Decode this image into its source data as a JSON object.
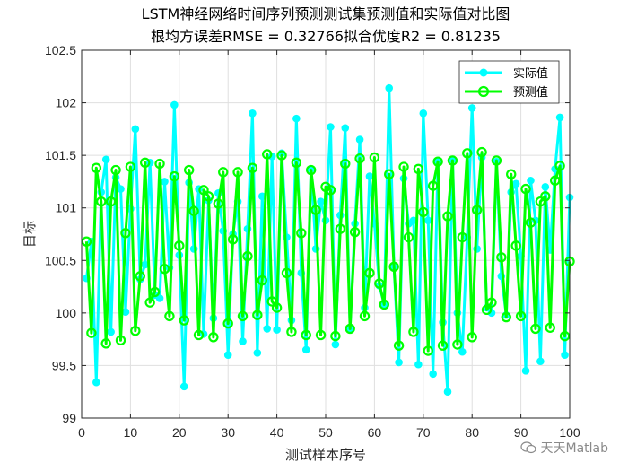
{
  "chart_data": {
    "type": "line",
    "title": "LSTM神经网络时间序列预测测试集预测值和实际值对比图",
    "subtitle": "根均方误差RMSE = 0.32766拟合优度R2 = 0.81235",
    "xlabel": "测试样本序号",
    "ylabel": "目标",
    "xlim": [
      0,
      100
    ],
    "ylim": [
      99,
      102.5
    ],
    "xticks": [
      0,
      10,
      20,
      30,
      40,
      50,
      60,
      70,
      80,
      90,
      100
    ],
    "yticks": [
      99,
      99.5,
      100,
      100.5,
      101,
      101.5,
      102,
      102.5
    ],
    "ytick_labels": [
      "99",
      "99.5",
      "100",
      "100.5",
      "101",
      "101.5",
      "102",
      "102.5"
    ],
    "grid": true,
    "legend_position": "top-right",
    "series": [
      {
        "name": "实际值",
        "color": "#00FFFF",
        "marker": "filled-circle",
        "values": [
          100.33,
          100.68,
          99.34,
          101.15,
          101.46,
          99.82,
          101.29,
          101.18,
          100.01,
          100.99,
          101.75,
          100.32,
          100.46,
          101.43,
          100.17,
          100.14,
          101.25,
          100.43,
          101.98,
          100.55,
          99.3,
          101.24,
          100.61,
          101.18,
          99.8,
          101.07,
          99.95,
          101.14,
          100.78,
          99.6,
          100.75,
          101.06,
          99.73,
          100.8,
          101.9,
          99.62,
          101.11,
          99.85,
          101.49,
          99.84,
          101.52,
          100.72,
          99.93,
          101.85,
          100.38,
          99.65,
          101.37,
          100.61,
          101.06,
          100.88,
          101.77,
          99.7,
          100.93,
          101.76,
          99.85,
          100.85,
          101.65,
          100.05,
          101.3,
          100.85,
          100.26,
          100.08,
          102.14,
          100.44,
          99.53,
          101.28,
          100.85,
          100.88,
          99.51,
          101.9,
          100.88,
          99.42,
          101.44,
          99.91,
          99.25,
          101.46,
          100.0,
          99.63,
          100.72,
          101.95,
          100.61,
          101.48,
          100.05,
          100.0,
          101.44,
          100.35,
          99.98,
          101.15,
          101.23,
          100.54,
          99.45,
          101.26,
          100.88,
          99.54,
          101.2,
          100.6,
          101.37,
          101.86,
          99.6,
          101.1
        ]
      },
      {
        "name": "预测值",
        "color": "#00FF00",
        "marker": "open-circle",
        "values": [
          100.68,
          99.81,
          101.38,
          101.06,
          99.71,
          101.06,
          101.36,
          99.74,
          100.76,
          101.39,
          99.83,
          100.35,
          101.43,
          100.1,
          100.2,
          101.42,
          100.42,
          99.97,
          101.3,
          100.64,
          99.93,
          101.36,
          100.97,
          99.79,
          101.17,
          101.11,
          99.77,
          101.04,
          101.34,
          99.9,
          100.7,
          101.34,
          99.97,
          100.54,
          101.38,
          99.98,
          100.31,
          101.51,
          100.11,
          100.05,
          101.5,
          100.38,
          99.82,
          101.43,
          100.76,
          99.79,
          101.36,
          100.98,
          99.79,
          101.2,
          101.17,
          99.78,
          100.8,
          101.42,
          99.85,
          100.77,
          101.47,
          99.97,
          100.38,
          101.48,
          100.28,
          100.08,
          101.32,
          100.44,
          99.69,
          101.39,
          100.72,
          99.82,
          101.37,
          100.96,
          99.64,
          101.21,
          101.44,
          99.69,
          100.92,
          101.45,
          99.7,
          100.72,
          101.52,
          99.77,
          100.98,
          101.53,
          100.03,
          100.1,
          101.45,
          100.53,
          99.96,
          101.32,
          100.64,
          99.97,
          101.18,
          100.86,
          99.85,
          101.06,
          101.11,
          99.86,
          101.26,
          101.4,
          99.78,
          100.49
        ]
      }
    ]
  },
  "watermark": {
    "text": "天天Matlab"
  }
}
